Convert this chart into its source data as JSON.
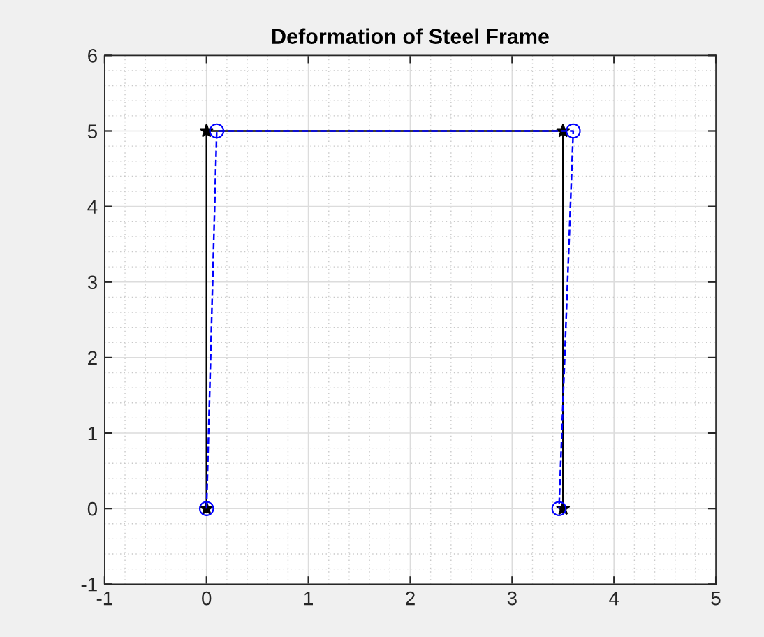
{
  "chart_data": {
    "type": "line",
    "title": "Deformation of Steel Frame",
    "series": [
      {
        "color": "#000000",
        "x": [
          0,
          0,
          3.5,
          3.5
        ],
        "values": [
          0,
          5,
          5,
          0
        ],
        "marker": "star",
        "line_style": "solid"
      },
      {
        "color": "#0000ff",
        "x": [
          0,
          0.1,
          3.6,
          3.46
        ],
        "values": [
          0,
          5,
          5,
          0
        ],
        "marker": "circle",
        "line_style": "dashed"
      }
    ],
    "xlim": [
      -1,
      5
    ],
    "xticks": [
      -1,
      0,
      1,
      2,
      3,
      4,
      5
    ],
    "ylim": [
      -1,
      6
    ],
    "yticks": [
      -1,
      0,
      1,
      2,
      3,
      4,
      5,
      6
    ],
    "grid": true,
    "legend": false
  }
}
